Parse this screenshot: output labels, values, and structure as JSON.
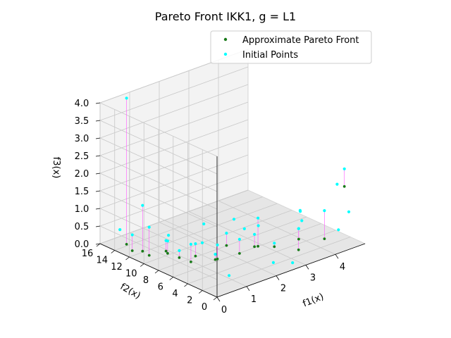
{
  "chart_data": {
    "type": "scatter",
    "projection": "3d",
    "title": "Pareto Front IKK1, g = L1",
    "xlabel": "f1(x)",
    "ylabel": "f2(x)",
    "zlabel": "f3(x)",
    "xlim": [
      0,
      5
    ],
    "ylim": [
      0,
      16
    ],
    "zlim": [
      0,
      4
    ],
    "x_ticks": [
      "0",
      "1",
      "2",
      "3",
      "4"
    ],
    "y_ticks": [
      "0",
      "2",
      "4",
      "6",
      "8",
      "10",
      "12",
      "14",
      "16"
    ],
    "z_ticks": [
      "0.0",
      "0.5",
      "1.0",
      "1.5",
      "2.0",
      "2.5",
      "3.0",
      "3.5",
      "4.0"
    ],
    "grid": true,
    "legend_position": "top-right",
    "connectors": "magenta lines from each initial point to its pareto point",
    "series": [
      {
        "name": "Approximate Pareto Front",
        "color": "#1a7a1a",
        "points": [
          [
            0.1,
            12.0,
            0.15
          ],
          [
            0.2,
            11.0,
            0.2
          ],
          [
            0.3,
            10.5,
            0.1
          ],
          [
            0.5,
            9.0,
            0.3
          ],
          [
            0.7,
            8.0,
            0.15
          ],
          [
            0.6,
            6.0,
            0.25
          ],
          [
            1.0,
            7.0,
            0.2
          ],
          [
            1.3,
            5.5,
            0.15
          ],
          [
            1.0,
            4.0,
            0.4
          ],
          [
            1.8,
            6.0,
            0.35
          ],
          [
            1.5,
            3.0,
            0.5
          ],
          [
            2.0,
            2.5,
            0.6
          ],
          [
            2.5,
            5.0,
            0.2
          ],
          [
            2.8,
            3.5,
            0.25
          ],
          [
            3.5,
            3.0,
            0.3
          ],
          [
            4.0,
            1.5,
            0.3
          ],
          [
            4.5,
            0.8,
            1.7
          ],
          [
            0.4,
            14.0,
            0.05
          ],
          [
            3.2,
            1.8,
            0.2
          ],
          [
            0.8,
            10.0,
            0.05
          ]
        ]
      },
      {
        "name": "Initial Points",
        "color": "#00ffff",
        "points": [
          [
            0.1,
            12.0,
            0.6
          ],
          [
            0.2,
            11.0,
            1.5
          ],
          [
            0.3,
            10.5,
            0.9
          ],
          [
            0.5,
            9.0,
            0.6
          ],
          [
            0.7,
            8.0,
            0.35
          ],
          [
            0.6,
            6.0,
            0.75
          ],
          [
            1.0,
            7.0,
            0.55
          ],
          [
            1.3,
            5.5,
            0.3
          ],
          [
            1.0,
            4.0,
            0.8
          ],
          [
            1.8,
            6.0,
            0.7
          ],
          [
            1.5,
            3.0,
            0.9
          ],
          [
            2.0,
            2.5,
            1.4
          ],
          [
            2.5,
            5.0,
            0.55
          ],
          [
            2.8,
            3.5,
            0.35
          ],
          [
            3.5,
            3.0,
            0.6
          ],
          [
            4.0,
            1.5,
            1.1
          ],
          [
            4.5,
            0.8,
            2.2
          ],
          [
            0.4,
            14.0,
            4.2
          ],
          [
            3.2,
            1.8,
            0.8
          ],
          [
            0.8,
            10.0,
            0.4
          ],
          [
            2.2,
            1.2,
            0.2
          ],
          [
            4.2,
            0.4,
            0.6
          ],
          [
            1.6,
            8.5,
            0.25
          ],
          [
            3.0,
            6.5,
            0.5
          ],
          [
            0.3,
            14.5,
            0.45
          ],
          [
            2.7,
            0.6,
            0.1
          ],
          [
            3.8,
            4.0,
            0.9
          ],
          [
            4.7,
            1.0,
            0.9
          ],
          [
            1.2,
            11.5,
            0.3
          ],
          [
            2.3,
            7.0,
            0.85
          ],
          [
            3.4,
            2.4,
            1.2
          ],
          [
            4.6,
            2.2,
            1.6
          ],
          [
            0.9,
            2.0,
            0.15
          ],
          [
            1.9,
            9.5,
            0.6
          ],
          [
            2.9,
            8.0,
            0.3
          ],
          [
            4.1,
            5.0,
            0.45
          ]
        ]
      }
    ]
  }
}
